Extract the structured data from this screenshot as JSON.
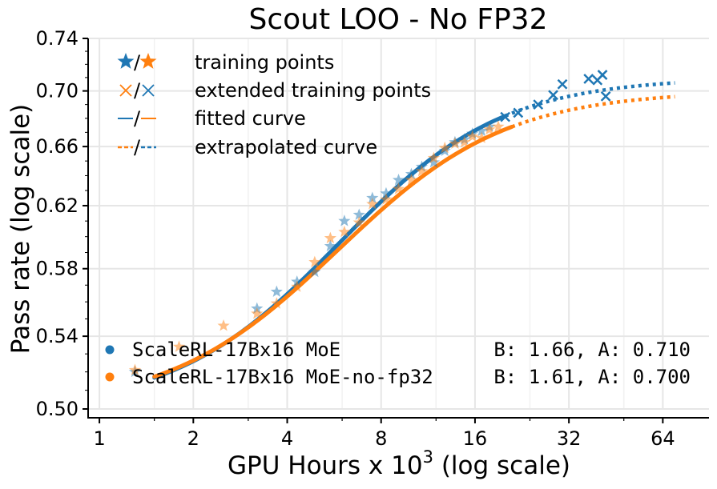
{
  "chart_data": {
    "type": "line",
    "title": "Scout LOO - No FP32",
    "xlabel": "GPU Hours x 10",
    "xlabel_sup": "3",
    "xlabel_suffix": " (log scale)",
    "ylabel": "Pass rate (log scale)",
    "xscale": "log2",
    "yscale": "log",
    "xlim": [
      0.92,
      90
    ],
    "ylim": [
      0.5,
      0.74
    ],
    "x_ticks": [
      1,
      2,
      4,
      8,
      16,
      32,
      64
    ],
    "x_tick_labels": [
      "1",
      "2",
      "4",
      "8",
      "16",
      "32",
      "64"
    ],
    "y_ticks": [
      0.5,
      0.54,
      0.58,
      0.62,
      0.66,
      0.7,
      0.74
    ],
    "y_tick_labels": [
      "0.50",
      "0.54",
      "0.58",
      "0.62",
      "0.66",
      "0.70",
      "0.74"
    ],
    "grid": true,
    "legend": {
      "position": "top-left",
      "entries": [
        {
          "marker_label": "/",
          "label": "training points"
        },
        {
          "marker_label": "/",
          "label": "extended training points"
        },
        {
          "marker_label": "/",
          "label": "fitted curve"
        },
        {
          "marker_label": "/",
          "label": "extrapolated curve"
        }
      ]
    },
    "series": [
      {
        "name": "ScaleRL-17Bx16 MoE",
        "params": "B: 1.66, A: 0.710",
        "color": "#1f77b4",
        "fit_range": [
          1.5,
          20
        ],
        "extrapolate_range": [
          20,
          70
        ],
        "curve": {
          "A": 0.71,
          "B": 1.66,
          "R0": 0.5,
          "C_mid": 6.52
        },
        "training_points": [
          [
            1.3,
            0.52
          ],
          [
            3.2,
            0.556
          ],
          [
            3.7,
            0.566
          ],
          [
            4.3,
            0.572
          ],
          [
            4.9,
            0.578
          ],
          [
            5.5,
            0.594
          ],
          [
            6.1,
            0.61
          ],
          [
            6.8,
            0.614
          ],
          [
            7.5,
            0.625
          ],
          [
            8.3,
            0.628
          ],
          [
            9.1,
            0.637
          ],
          [
            10.0,
            0.641
          ],
          [
            10.8,
            0.646
          ],
          [
            11.8,
            0.649
          ],
          [
            12.8,
            0.657
          ],
          [
            13.8,
            0.663
          ],
          [
            14.8,
            0.665
          ],
          [
            15.7,
            0.669
          ],
          [
            16.8,
            0.671
          ],
          [
            17.8,
            0.674
          ]
        ],
        "extended_points": [
          [
            20.0,
            0.681
          ],
          [
            22.0,
            0.684
          ],
          [
            25.5,
            0.69
          ],
          [
            28.5,
            0.697
          ],
          [
            30.5,
            0.705
          ],
          [
            37.0,
            0.709
          ],
          [
            39.5,
            0.708
          ],
          [
            41.0,
            0.712
          ],
          [
            42.0,
            0.696
          ]
        ]
      },
      {
        "name": "ScaleRL-17Bx16 MoE-no-fp32",
        "params": "B: 1.61, A: 0.700",
        "color": "#ff7f0e",
        "fit_range": [
          1.5,
          21
        ],
        "extrapolate_range": [
          21,
          70
        ],
        "curve": {
          "A": 0.7,
          "B": 1.61,
          "R0": 0.5,
          "C_mid": 6.46
        },
        "training_points": [
          [
            1.3,
            0.521
          ],
          [
            1.8,
            0.534
          ],
          [
            2.5,
            0.546
          ],
          [
            3.2,
            0.553
          ],
          [
            3.7,
            0.559
          ],
          [
            4.3,
            0.569
          ],
          [
            4.9,
            0.584
          ],
          [
            5.5,
            0.599
          ],
          [
            6.1,
            0.603
          ],
          [
            6.8,
            0.609
          ],
          [
            7.5,
            0.621
          ],
          [
            8.3,
            0.624
          ],
          [
            9.1,
            0.631
          ],
          [
            10.0,
            0.637
          ],
          [
            10.8,
            0.643
          ],
          [
            11.8,
            0.652
          ],
          [
            12.8,
            0.659
          ],
          [
            13.8,
            0.662
          ],
          [
            14.8,
            0.663
          ],
          [
            15.7,
            0.667
          ],
          [
            16.8,
            0.666
          ],
          [
            17.8,
            0.672
          ],
          [
            19.0,
            0.674
          ]
        ],
        "extended_points": []
      }
    ]
  }
}
